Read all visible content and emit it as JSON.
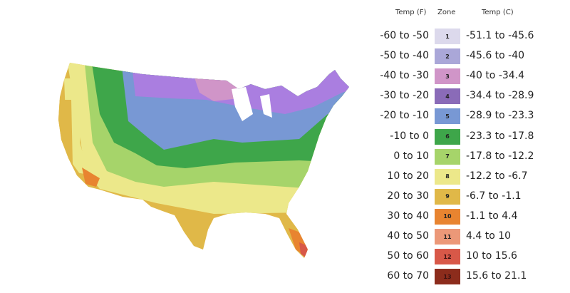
{
  "legend": {
    "header_f": "Temp (F)",
    "header_zone": "Zone",
    "header_c": "Temp (C)",
    "rows": [
      {
        "f": "-60 to -50",
        "zone": "1",
        "c": "-51.1 to -45.6",
        "color": "#dcd9ec"
      },
      {
        "f": "-50 to -40",
        "zone": "2",
        "c": "-45.6 to -40",
        "color": "#aaa7d8"
      },
      {
        "f": "-40 to -30",
        "zone": "3",
        "c": "-40 to -34.4",
        "color": "#d095c8"
      },
      {
        "f": "-30 to -20",
        "zone": "4",
        "c": "-34.4 to -28.9",
        "color": "#8a6bb8"
      },
      {
        "f": "-20 to -10",
        "zone": "5",
        "c": "-28.9 to -23.3",
        "color": "#7898d4"
      },
      {
        "f": "-10 to 0",
        "zone": "6",
        "c": "-23.3 to -17.8",
        "color": "#3ea64a"
      },
      {
        "f": "0 to 10",
        "zone": "7",
        "c": "-17.8 to -12.2",
        "color": "#a6d46a"
      },
      {
        "f": "10 to 20",
        "zone": "8",
        "c": "-12.2 to -6.7",
        "color": "#ece88a"
      },
      {
        "f": "20 to 30",
        "zone": "9",
        "c": "-6.7 to -1.1",
        "color": "#e0b848"
      },
      {
        "f": "30 to 40",
        "zone": "10",
        "c": "-1.1 to 4.4",
        "color": "#e88430"
      },
      {
        "f": "40 to 50",
        "zone": "11",
        "c": "4.4 to 10",
        "color": "#ec9878"
      },
      {
        "f": "50 to 60",
        "zone": "12",
        "c": "10 to 15.6",
        "color": "#d85848"
      },
      {
        "f": "60 to 70",
        "zone": "13",
        "c": "15.6 to 21.1",
        "color": "#8c2c1c"
      }
    ]
  }
}
